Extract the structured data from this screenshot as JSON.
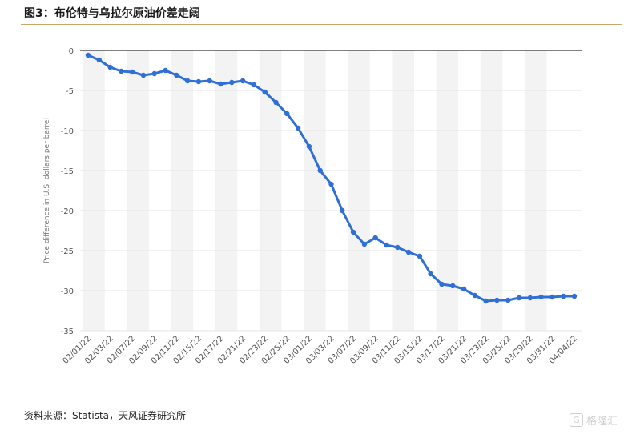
{
  "figure": {
    "title": "图3：布伦特与乌拉尔原油价差走阔",
    "source": "资料来源：Statista，天风证券研究所",
    "watermark": "格隆汇"
  },
  "chart_data": {
    "type": "line",
    "ylabel": "Price difference in U.S. dollars per barrel",
    "xlabel": "",
    "ylim": [
      -35,
      0
    ],
    "yticks": [
      0,
      -5,
      -10,
      -15,
      -20,
      -25,
      -30,
      -35
    ],
    "x": [
      "02/01/22",
      "02/02/22",
      "02/03/22",
      "02/04/22",
      "02/07/22",
      "02/08/22",
      "02/09/22",
      "02/10/22",
      "02/11/22",
      "02/14/22",
      "02/15/22",
      "02/16/22",
      "02/17/22",
      "02/18/22",
      "02/21/22",
      "02/22/22",
      "02/23/22",
      "02/24/22",
      "02/25/22",
      "02/28/22",
      "03/01/22",
      "03/02/22",
      "03/03/22",
      "03/04/22",
      "03/07/22",
      "03/08/22",
      "03/09/22",
      "03/10/22",
      "03/11/22",
      "03/14/22",
      "03/15/22",
      "03/16/22",
      "03/17/22",
      "03/18/22",
      "03/21/22",
      "03/22/22",
      "03/23/22",
      "03/24/22",
      "03/25/22",
      "03/28/22",
      "03/29/22",
      "03/30/22",
      "03/31/22",
      "04/01/22",
      "04/04/22"
    ],
    "xtick_labels": [
      "02/01/22",
      "02/03/22",
      "02/07/22",
      "02/09/22",
      "02/11/22",
      "02/15/22",
      "02/17/22",
      "02/21/22",
      "02/23/22",
      "02/25/22",
      "03/01/22",
      "03/03/22",
      "03/07/22",
      "03/09/22",
      "03/11/22",
      "03/15/22",
      "03/17/22",
      "03/21/22",
      "03/23/22",
      "03/25/22",
      "03/29/22",
      "03/31/22",
      "04/04/22"
    ],
    "series": [
      {
        "values": [
          -0.6,
          -1.2,
          -2.1,
          -2.6,
          -2.7,
          -3.1,
          -2.9,
          -2.5,
          -3.1,
          -3.8,
          -3.9,
          -3.8,
          -4.2,
          -4.0,
          -3.8,
          -4.3,
          -5.2,
          -6.5,
          -7.9,
          -9.7,
          -12.0,
          -15.0,
          -16.7,
          -20.0,
          -22.7,
          -24.2,
          -23.4,
          -24.3,
          -24.6,
          -25.2,
          -25.7,
          -27.9,
          -29.2,
          -29.4,
          -29.8,
          -30.6,
          -31.3,
          -31.2,
          -31.2,
          -30.9,
          -30.9,
          -30.8,
          -30.8,
          -30.7,
          -30.7
        ]
      }
    ],
    "colors": {
      "line": "#2f6fd6",
      "zero_line": "#555555",
      "band": "#f3f3f3",
      "grid": "#e6e6e6"
    },
    "grid": true,
    "legend": "none"
  }
}
